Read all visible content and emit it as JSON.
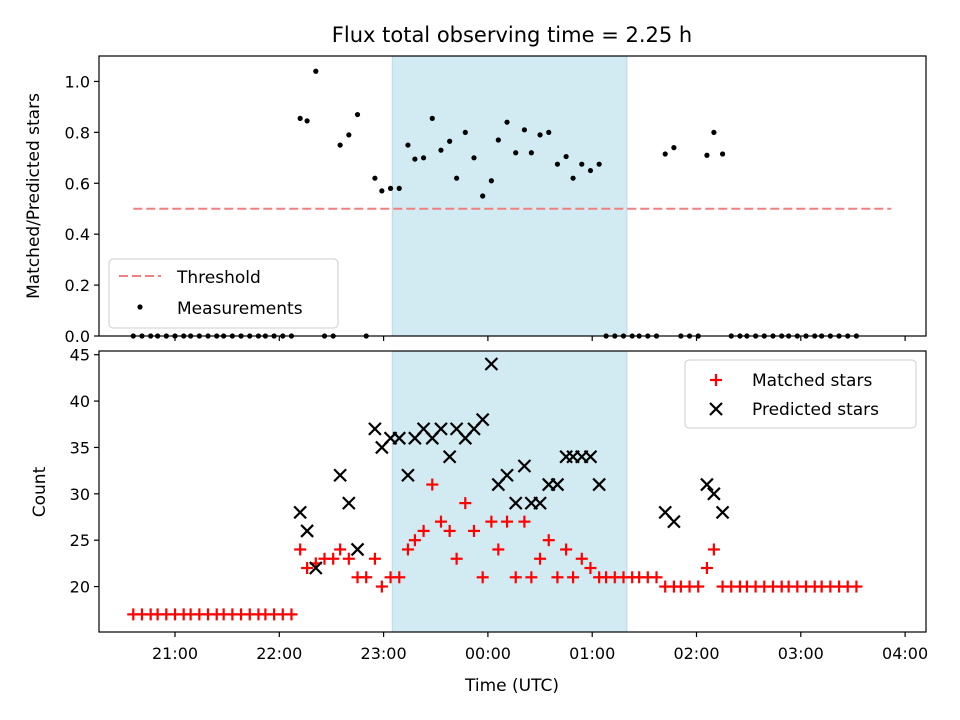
{
  "chart_data": {
    "title": "Flux total observing time = 2.25 h",
    "xlabel": "Time (UTC)",
    "x_ticks": [
      "21:00",
      "22:00",
      "23:00",
      "00:00",
      "01:00",
      "02:00",
      "03:00",
      "04:00"
    ],
    "shaded_span": {
      "start": "23:05",
      "end": "01:20",
      "color": "#add8e6"
    },
    "panels": [
      {
        "type": "scatter",
        "ylabel": "Matched/Predicted stars",
        "ylim": [
          0,
          1.1
        ],
        "y_ticks": [
          "0.0",
          "0.2",
          "0.4",
          "0.6",
          "0.8",
          "1.0"
        ],
        "legend_position": "lower-left",
        "threshold": {
          "name": "Threshold",
          "value": 0.5,
          "x_start": "20:36",
          "x_end": "03:52",
          "color": "#f08080"
        },
        "series": [
          {
            "name": "Measurements",
            "color": "#000000",
            "marker": "dot",
            "points": [
              [
                "20:36",
                0
              ],
              [
                "20:41",
                0
              ],
              [
                "20:46",
                0
              ],
              [
                "20:50",
                0
              ],
              [
                "20:55",
                0
              ],
              [
                "21:00",
                0
              ],
              [
                "21:05",
                0
              ],
              [
                "21:09",
                0
              ],
              [
                "21:14",
                0
              ],
              [
                "21:19",
                0
              ],
              [
                "21:24",
                0
              ],
              [
                "21:28",
                0
              ],
              [
                "21:33",
                0
              ],
              [
                "21:38",
                0
              ],
              [
                "21:43",
                0
              ],
              [
                "21:48",
                0
              ],
              [
                "21:52",
                0
              ],
              [
                "21:57",
                0
              ],
              [
                "22:02",
                0
              ],
              [
                "22:07",
                0
              ],
              [
                "22:12",
                0.855
              ],
              [
                "22:16",
                0.845
              ],
              [
                "22:21",
                1.04
              ],
              [
                "22:26",
                0
              ],
              [
                "22:31",
                0
              ],
              [
                "22:35",
                0.75
              ],
              [
                "22:40",
                0.79
              ],
              [
                "22:45",
                0.87
              ],
              [
                "22:50",
                0
              ],
              [
                "22:55",
                0.62
              ],
              [
                "22:59",
                0.57
              ],
              [
                "23:04",
                0.58
              ],
              [
                "23:09",
                0.58
              ],
              [
                "23:14",
                0.75
              ],
              [
                "23:18",
                0.695
              ],
              [
                "23:23",
                0.7
              ],
              [
                "23:28",
                0.855
              ],
              [
                "23:33",
                0.73
              ],
              [
                "23:38",
                0.765
              ],
              [
                "23:42",
                0.62
              ],
              [
                "23:47",
                0.8
              ],
              [
                "23:52",
                0.7
              ],
              [
                "23:57",
                0.55
              ],
              [
                "00:02",
                0.61
              ],
              [
                "00:06",
                0.77
              ],
              [
                "00:11",
                0.84
              ],
              [
                "00:16",
                0.72
              ],
              [
                "00:21",
                0.81
              ],
              [
                "00:25",
                0.72
              ],
              [
                "00:30",
                0.79
              ],
              [
                "00:35",
                0.8
              ],
              [
                "00:40",
                0.675
              ],
              [
                "00:45",
                0.705
              ],
              [
                "00:49",
                0.62
              ],
              [
                "00:54",
                0.675
              ],
              [
                "00:59",
                0.65
              ],
              [
                "01:04",
                0.675
              ],
              [
                "01:08",
                0
              ],
              [
                "01:13",
                0
              ],
              [
                "01:18",
                0
              ],
              [
                "01:23",
                0
              ],
              [
                "01:27",
                0
              ],
              [
                "01:32",
                0
              ],
              [
                "01:37",
                0
              ],
              [
                "01:42",
                0.715
              ],
              [
                "01:47",
                0.74
              ],
              [
                "01:51",
                0
              ],
              [
                "01:56",
                0
              ],
              [
                "02:01",
                0
              ],
              [
                "02:06",
                0.71
              ],
              [
                "02:10",
                0.8
              ],
              [
                "02:15",
                0.715
              ],
              [
                "02:20",
                0
              ],
              [
                "02:25",
                0
              ],
              [
                "02:29",
                0
              ],
              [
                "02:34",
                0
              ],
              [
                "02:39",
                0
              ],
              [
                "02:44",
                0
              ],
              [
                "02:49",
                0
              ],
              [
                "02:53",
                0
              ],
              [
                "02:58",
                0
              ],
              [
                "03:03",
                0
              ],
              [
                "03:08",
                0
              ],
              [
                "03:12",
                0
              ],
              [
                "03:17",
                0
              ],
              [
                "03:22",
                0
              ],
              [
                "03:27",
                0
              ],
              [
                "03:32",
                0
              ]
            ]
          }
        ]
      },
      {
        "type": "scatter",
        "ylabel": "Count",
        "ylim": [
          15.1,
          45.4
        ],
        "y_ticks": [
          "20",
          "25",
          "30",
          "35",
          "40",
          "45"
        ],
        "legend_position": "top-right",
        "series": [
          {
            "name": "Matched stars",
            "color": "#ff0000",
            "marker": "plus",
            "points": [
              [
                "20:36",
                17
              ],
              [
                "20:41",
                17
              ],
              [
                "20:46",
                17
              ],
              [
                "20:50",
                17
              ],
              [
                "20:55",
                17
              ],
              [
                "21:00",
                17
              ],
              [
                "21:05",
                17
              ],
              [
                "21:09",
                17
              ],
              [
                "21:14",
                17
              ],
              [
                "21:19",
                17
              ],
              [
                "21:24",
                17
              ],
              [
                "21:28",
                17
              ],
              [
                "21:33",
                17
              ],
              [
                "21:38",
                17
              ],
              [
                "21:43",
                17
              ],
              [
                "21:48",
                17
              ],
              [
                "21:52",
                17
              ],
              [
                "21:57",
                17
              ],
              [
                "22:02",
                17
              ],
              [
                "22:07",
                17
              ],
              [
                "22:12",
                24
              ],
              [
                "22:16",
                22
              ],
              [
                "22:21",
                22.5
              ],
              [
                "22:26",
                23
              ],
              [
                "22:31",
                23
              ],
              [
                "22:35",
                24
              ],
              [
                "22:40",
                23
              ],
              [
                "22:45",
                21
              ],
              [
                "22:50",
                21
              ],
              [
                "22:55",
                23
              ],
              [
                "22:59",
                20
              ],
              [
                "23:04",
                21
              ],
              [
                "23:09",
                21
              ],
              [
                "23:14",
                24
              ],
              [
                "23:18",
                25
              ],
              [
                "23:23",
                26
              ],
              [
                "23:28",
                31
              ],
              [
                "23:33",
                27
              ],
              [
                "23:38",
                26
              ],
              [
                "23:42",
                23
              ],
              [
                "23:47",
                29
              ],
              [
                "23:52",
                26
              ],
              [
                "23:57",
                21
              ],
              [
                "00:02",
                27
              ],
              [
                "00:06",
                24
              ],
              [
                "00:11",
                27
              ],
              [
                "00:16",
                21
              ],
              [
                "00:21",
                27
              ],
              [
                "00:25",
                21
              ],
              [
                "00:30",
                23
              ],
              [
                "00:35",
                25
              ],
              [
                "00:40",
                21
              ],
              [
                "00:45",
                24
              ],
              [
                "00:49",
                21
              ],
              [
                "00:54",
                23
              ],
              [
                "00:59",
                22
              ],
              [
                "01:04",
                21
              ],
              [
                "01:08",
                21
              ],
              [
                "01:13",
                21
              ],
              [
                "01:18",
                21
              ],
              [
                "01:23",
                21
              ],
              [
                "01:27",
                21
              ],
              [
                "01:32",
                21
              ],
              [
                "01:37",
                21
              ],
              [
                "01:42",
                20
              ],
              [
                "01:47",
                20
              ],
              [
                "01:51",
                20
              ],
              [
                "01:56",
                20
              ],
              [
                "02:01",
                20
              ],
              [
                "02:06",
                22
              ],
              [
                "02:10",
                24
              ],
              [
                "02:15",
                20
              ],
              [
                "02:20",
                20
              ],
              [
                "02:25",
                20
              ],
              [
                "02:29",
                20
              ],
              [
                "02:34",
                20
              ],
              [
                "02:39",
                20
              ],
              [
                "02:44",
                20
              ],
              [
                "02:49",
                20
              ],
              [
                "02:53",
                20
              ],
              [
                "02:58",
                20
              ],
              [
                "03:03",
                20
              ],
              [
                "03:08",
                20
              ],
              [
                "03:12",
                20
              ],
              [
                "03:17",
                20
              ],
              [
                "03:22",
                20
              ],
              [
                "03:27",
                20
              ],
              [
                "03:32",
                20
              ]
            ]
          },
          {
            "name": "Predicted stars",
            "color": "#000000",
            "marker": "x",
            "points": [
              [
                "22:12",
                28
              ],
              [
                "22:16",
                26
              ],
              [
                "22:21",
                22
              ],
              [
                "22:35",
                32
              ],
              [
                "22:40",
                29
              ],
              [
                "22:45",
                24
              ],
              [
                "22:55",
                37
              ],
              [
                "22:59",
                35
              ],
              [
                "23:04",
                36
              ],
              [
                "23:09",
                36
              ],
              [
                "23:14",
                32
              ],
              [
                "23:18",
                36
              ],
              [
                "23:23",
                37
              ],
              [
                "23:28",
                36
              ],
              [
                "23:33",
                37
              ],
              [
                "23:38",
                34
              ],
              [
                "23:42",
                37
              ],
              [
                "23:47",
                36
              ],
              [
                "23:52",
                37
              ],
              [
                "23:57",
                38
              ],
              [
                "00:02",
                44
              ],
              [
                "00:06",
                31
              ],
              [
                "00:11",
                32
              ],
              [
                "00:16",
                29
              ],
              [
                "00:21",
                33
              ],
              [
                "00:25",
                29
              ],
              [
                "00:30",
                29
              ],
              [
                "00:35",
                31
              ],
              [
                "00:40",
                31
              ],
              [
                "00:45",
                34
              ],
              [
                "00:49",
                34
              ],
              [
                "00:54",
                34
              ],
              [
                "00:59",
                34
              ],
              [
                "01:04",
                31
              ],
              [
                "01:42",
                28
              ],
              [
                "01:47",
                27
              ],
              [
                "02:06",
                31
              ],
              [
                "02:10",
                30
              ],
              [
                "02:15",
                28
              ]
            ]
          }
        ]
      }
    ]
  }
}
